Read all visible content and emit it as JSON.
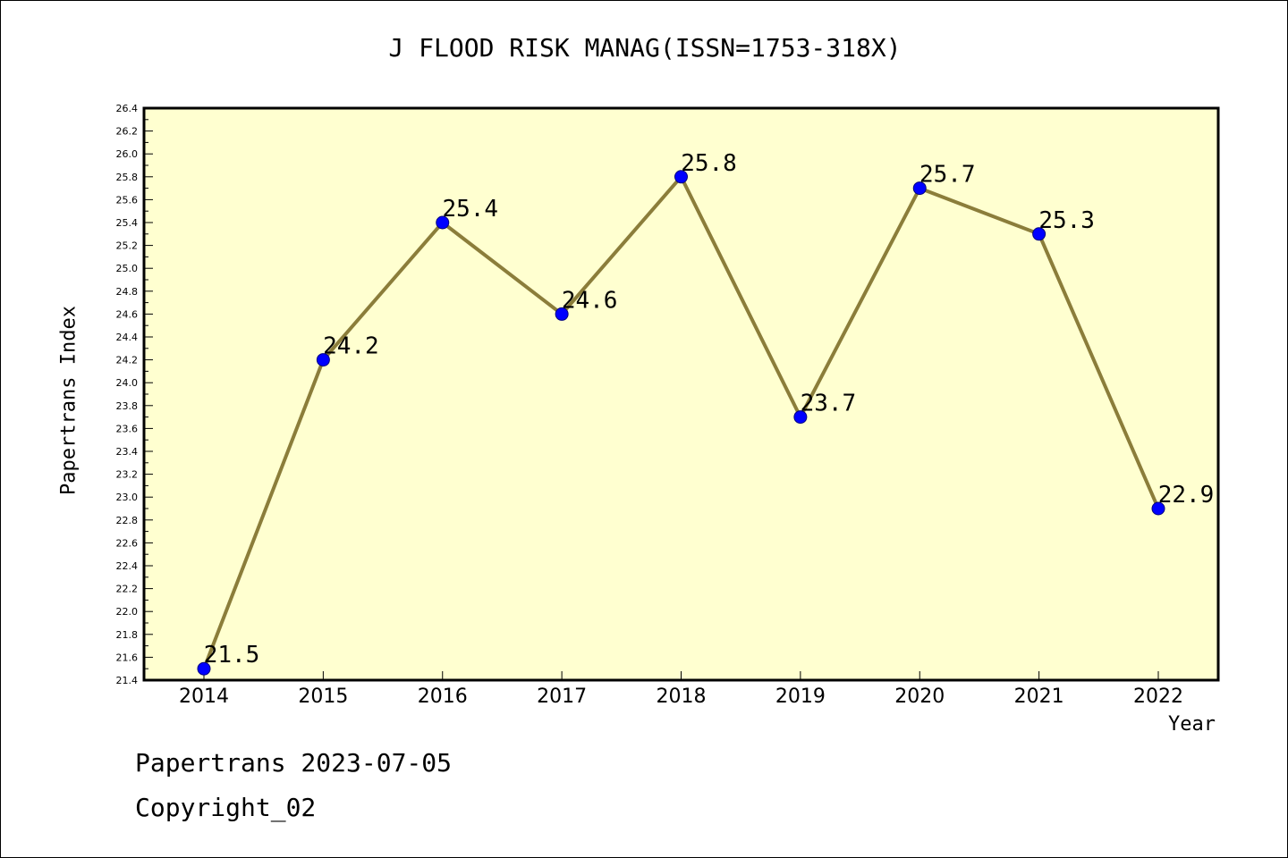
{
  "footer": {
    "date_text": "Papertrans 2023-07-05",
    "copyright_text": "Copyright_02"
  },
  "colors": {
    "plot_background": "#ffffd0",
    "line": "#8b7d3a",
    "marker": "#0000ff",
    "frame": "#000000"
  },
  "chart_data": {
    "type": "line",
    "title": "J FLOOD RISK MANAG(ISSN=1753-318X)",
    "xlabel": "Year",
    "ylabel": "Papertrans Index",
    "x": [
      "2014",
      "2015",
      "2016",
      "2017",
      "2018",
      "2019",
      "2020",
      "2021",
      "2022"
    ],
    "series": [
      {
        "values": [
          21.5,
          24.2,
          25.4,
          24.6,
          25.8,
          23.7,
          25.7,
          25.3,
          22.9
        ],
        "data_labels": [
          "21.5",
          "24.2",
          "25.4",
          "24.6",
          "25.8",
          "23.7",
          "25.7",
          "25.3",
          "22.9"
        ]
      }
    ],
    "ylim": [
      21.4,
      26.4
    ],
    "y_ticks": [
      "21.4",
      "21.6",
      "21.8",
      "22.0",
      "22.2",
      "22.4",
      "22.6",
      "22.8",
      "23.0",
      "23.2",
      "23.4",
      "23.6",
      "23.8",
      "24.0",
      "24.2",
      "24.4",
      "24.6",
      "24.8",
      "25.0",
      "25.2",
      "25.4",
      "25.6",
      "25.8",
      "26.0",
      "26.2",
      "26.4"
    ],
    "grid": false,
    "legend": "none"
  }
}
